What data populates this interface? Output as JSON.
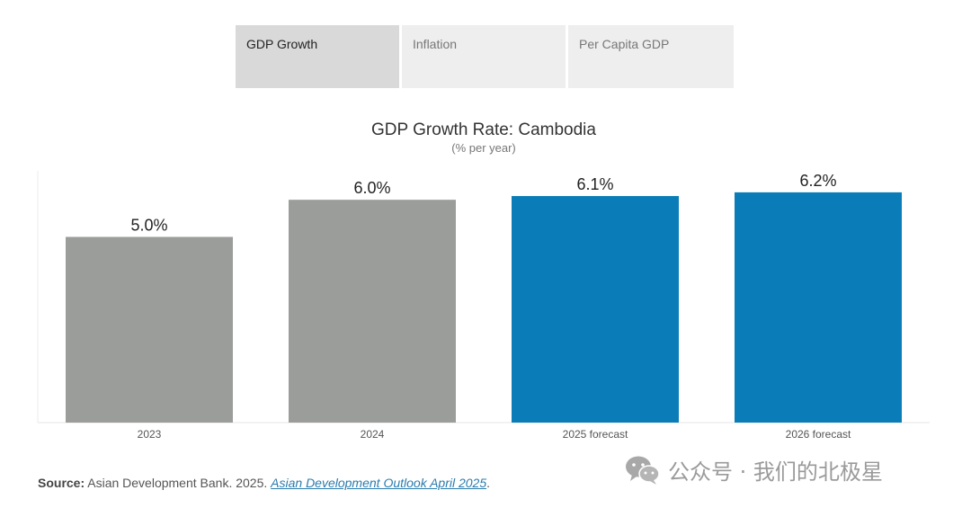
{
  "tabs": [
    {
      "label": "GDP Growth",
      "active": true
    },
    {
      "label": "Inflation",
      "active": false
    },
    {
      "label": "Per Capita GDP",
      "active": false
    }
  ],
  "chart": {
    "title": "GDP Growth Rate: Cambodia",
    "subtitle": "(% per year)"
  },
  "chart_data": {
    "type": "bar",
    "title": "GDP Growth Rate: Cambodia",
    "subtitle": "(% per year)",
    "xlabel": "",
    "ylabel": "",
    "categories": [
      "2023",
      "2024",
      "2025 forecast",
      "2026 forecast"
    ],
    "values": [
      5.0,
      6.0,
      6.1,
      6.2
    ],
    "data_labels": [
      "5.0%",
      "6.0%",
      "6.1%",
      "6.2%"
    ],
    "ylim": [
      0,
      6.9
    ],
    "grid": false,
    "colors": {
      "actual": "#9b9d9a",
      "forecast": "#0a7db8"
    },
    "forecast": [
      false,
      false,
      true,
      true
    ]
  },
  "source": {
    "label": "Source:",
    "text": " Asian Development Bank. 2025. ",
    "link_text": "Asian Development Outlook April 2025",
    "end": "."
  },
  "watermark": {
    "icon": "wechat-icon",
    "text": "公众号 · 我们的北极星"
  }
}
